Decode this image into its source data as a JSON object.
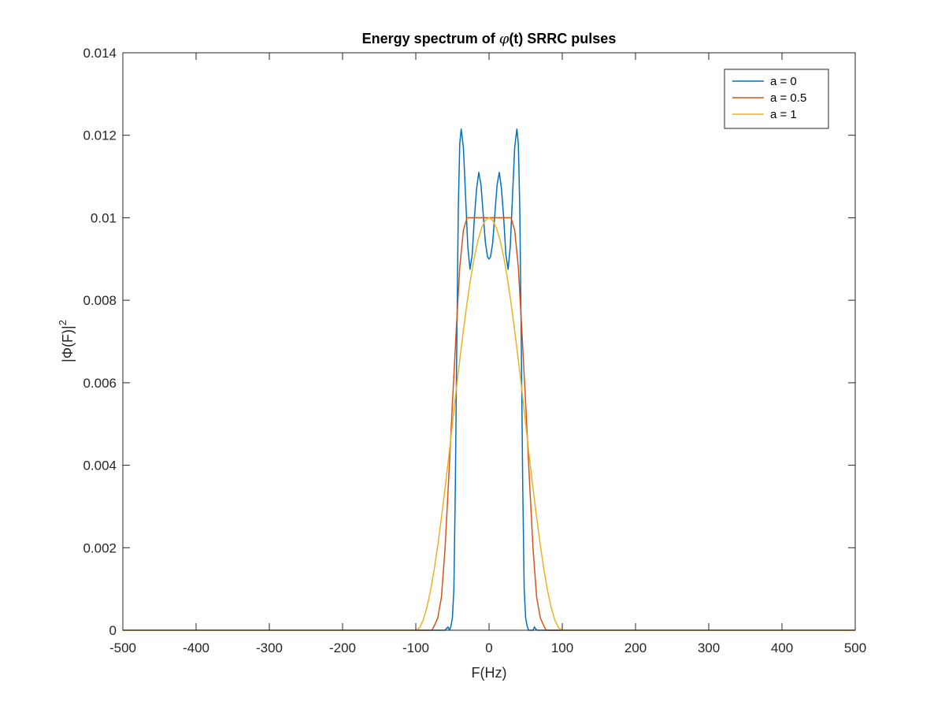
{
  "chart_data": {
    "type": "line",
    "title_parts": [
      "Energy spectrum of ",
      "φ",
      "(t) SRRC pulses"
    ],
    "xlabel": "F(Hz)",
    "ylabel_parts": [
      "|Φ(F)|",
      "2"
    ],
    "xlim": [
      -500,
      500
    ],
    "ylim": [
      0,
      0.014
    ],
    "xticks": [
      -500,
      -400,
      -300,
      -200,
      -100,
      0,
      100,
      200,
      300,
      400,
      500
    ],
    "xtick_labels": [
      "-500",
      "-400",
      "-300",
      "-200",
      "-100",
      "0",
      "100",
      "200",
      "300",
      "400",
      "500"
    ],
    "yticks": [
      0,
      0.002,
      0.004,
      0.006,
      0.008,
      0.01,
      0.012,
      0.014
    ],
    "ytick_labels": [
      "0",
      "0.002",
      "0.004",
      "0.006",
      "0.008",
      "0.01",
      "0.012",
      "0.014"
    ],
    "grid": false,
    "legend_position": "top-right",
    "series": [
      {
        "name": "a = 0",
        "color": "#0072BD",
        "x": [
          -500,
          -60,
          -56,
          -54,
          -52,
          -50,
          -48,
          -46,
          -44,
          -42,
          -40,
          -38,
          -35,
          -32,
          -29,
          -26,
          -23,
          -20,
          -17,
          -14,
          -11,
          -8,
          -5,
          -2,
          0,
          2,
          5,
          8,
          11,
          14,
          17,
          20,
          23,
          26,
          29,
          32,
          35,
          38,
          40,
          42,
          44,
          46,
          48,
          50,
          52,
          54,
          56,
          60,
          62,
          64,
          66,
          500
        ],
        "y": [
          0,
          0,
          8e-05,
          0,
          0.0001,
          0.0003,
          0.001,
          0.0035,
          0.007,
          0.0102,
          0.0118,
          0.01215,
          0.0117,
          0.0105,
          0.0093,
          0.00875,
          0.0091,
          0.01,
          0.0107,
          0.0111,
          0.0108,
          0.0101,
          0.0094,
          0.00905,
          0.009,
          0.00905,
          0.0094,
          0.0101,
          0.0108,
          0.0111,
          0.0107,
          0.01,
          0.0091,
          0.00875,
          0.0093,
          0.0105,
          0.0117,
          0.01215,
          0.0118,
          0.0102,
          0.007,
          0.0035,
          0.001,
          0.0003,
          0.0001,
          0,
          0,
          0,
          8e-05,
          2e-05,
          0,
          0
        ]
      },
      {
        "name": "a = 0.5",
        "color": "#D95319",
        "x": [
          -500,
          -78,
          -75,
          -70,
          -65,
          -60,
          -55,
          -50,
          -45,
          -40,
          -35,
          -30,
          -25,
          -20,
          -15,
          -10,
          -5,
          0,
          5,
          10,
          15,
          20,
          25,
          30,
          35,
          40,
          45,
          50,
          55,
          60,
          65,
          70,
          75,
          78,
          500
        ],
        "y": [
          0,
          0,
          0.0001,
          0.0003,
          0.0008,
          0.002,
          0.0037,
          0.0055,
          0.0072,
          0.0088,
          0.0097,
          0.01,
          0.01,
          0.01,
          0.01,
          0.01,
          0.01,
          0.01,
          0.01,
          0.01,
          0.01,
          0.01,
          0.01,
          0.01,
          0.0097,
          0.0088,
          0.0072,
          0.0055,
          0.0037,
          0.002,
          0.0008,
          0.0003,
          0.0001,
          0,
          0
        ]
      },
      {
        "name": "a = 1",
        "color": "#EDB120",
        "x": [
          -500,
          -100,
          -95,
          -90,
          -85,
          -80,
          -75,
          -70,
          -65,
          -60,
          -55,
          -50,
          -45,
          -40,
          -35,
          -30,
          -25,
          -20,
          -15,
          -10,
          -5,
          0,
          5,
          10,
          15,
          20,
          25,
          30,
          35,
          40,
          45,
          50,
          55,
          60,
          65,
          70,
          75,
          80,
          85,
          90,
          95,
          100,
          500
        ],
        "y": [
          0,
          0,
          6e-05,
          0.00024,
          0.00054,
          0.00095,
          0.00146,
          0.00206,
          0.00273,
          0.00345,
          0.0042,
          0.005,
          0.0058,
          0.00655,
          0.00727,
          0.00794,
          0.00854,
          0.00905,
          0.00946,
          0.00976,
          0.00994,
          0.01,
          0.00994,
          0.00976,
          0.00946,
          0.00905,
          0.00854,
          0.00794,
          0.00727,
          0.00655,
          0.0058,
          0.005,
          0.0042,
          0.00345,
          0.00273,
          0.00206,
          0.00146,
          0.00095,
          0.00054,
          0.00024,
          6e-05,
          0,
          0
        ]
      }
    ]
  }
}
